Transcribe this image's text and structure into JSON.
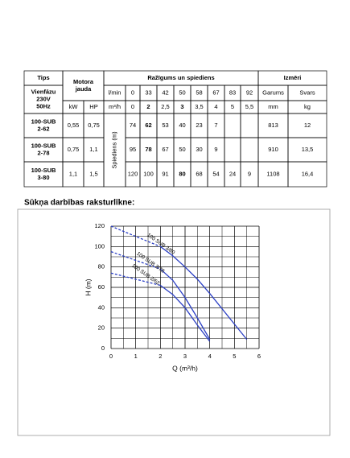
{
  "table": {
    "header": {
      "tips": "Tips",
      "motor": [
        "Motora",
        "jauda"
      ],
      "flow": "Ražīgums un spiediens",
      "dims": "Izmēri"
    },
    "supply": [
      "Vienfāzu",
      "230V",
      "50Hz"
    ],
    "power_units": [
      "kW",
      "HP"
    ],
    "flow_rows": [
      {
        "unit": "l/min",
        "values": [
          0,
          33,
          42,
          50,
          58,
          67,
          83,
          92
        ]
      },
      {
        "unit": "m³/h",
        "values": [
          0,
          2,
          "2,5",
          3,
          "3,5",
          4,
          5,
          "5,5"
        ]
      }
    ],
    "dim_names": [
      "Garums",
      "Svars"
    ],
    "dim_units": [
      "mm",
      "kg"
    ],
    "pressure_label": "Spiediens (m)",
    "rows": [
      {
        "model": [
          "100-SUB",
          "2-62"
        ],
        "kw": "0,55",
        "hp": "0,75",
        "pressure": [
          74,
          62,
          53,
          40,
          23,
          7,
          null,
          null
        ],
        "length": 813,
        "weight": 12
      },
      {
        "model": [
          "100-SUB",
          "2-78"
        ],
        "kw": "0,75",
        "hp": "1,1",
        "pressure": [
          95,
          78,
          67,
          50,
          30,
          9,
          null,
          null
        ],
        "length": 910,
        "weight": "13,5"
      },
      {
        "model": [
          "100-SUB",
          "3-80"
        ],
        "kw": "1,1",
        "hp": "1,5",
        "pressure": [
          120,
          100,
          91,
          80,
          68,
          54,
          24,
          9
        ],
        "length": 1108,
        "weight": "16,4"
      }
    ]
  },
  "chart_data": {
    "type": "line",
    "title": "Sūkņa darbības raksturlīkne:",
    "xlabel": "Q (m³/h)",
    "ylabel": "H (m)",
    "xlim": [
      0,
      6
    ],
    "ylim": [
      0,
      120
    ],
    "xticks": [
      0,
      1,
      2,
      3,
      4,
      5,
      6
    ],
    "yticks": [
      0,
      20,
      40,
      60,
      80,
      100,
      120
    ],
    "grid": true,
    "series": [
      {
        "name": "100 SUB 3/80",
        "color": "#2b3fc4",
        "x": [
          0,
          2,
          2.5,
          3,
          3.5,
          4,
          5,
          5.5
        ],
        "values": [
          120,
          100,
          91,
          80,
          68,
          54,
          24,
          9
        ]
      },
      {
        "name": "100 SUB 2/78",
        "color": "#2b3fc4",
        "x": [
          0,
          2,
          2.5,
          3,
          3.5,
          4
        ],
        "values": [
          95,
          78,
          67,
          50,
          30,
          9
        ]
      },
      {
        "name": "100 SUB 2/62",
        "color": "#2b3fc4",
        "x": [
          0,
          2,
          2.5,
          3,
          3.5,
          4
        ],
        "values": [
          74,
          62,
          53,
          40,
          23,
          7
        ]
      }
    ]
  }
}
